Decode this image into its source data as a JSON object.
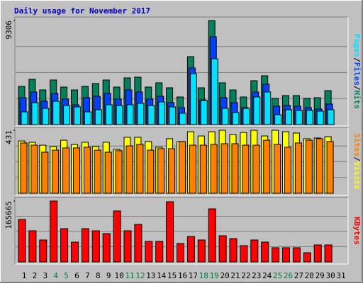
{
  "chart_data": [
    {
      "type": "bar",
      "title": "Daily usage for November 2017",
      "ylim": [
        0,
        9306
      ],
      "yticks": [
        9306
      ],
      "legend_separator": "/",
      "series": [
        {
          "name": "Hits",
          "color": "#00805c",
          "values": [
            3419,
            4052,
            3102,
            3988,
            3355,
            3102,
            3419,
            3672,
            3988,
            3355,
            4178,
            4242,
            3355,
            3735,
            3292,
            2469,
            6077,
            3292,
            9306,
            3735,
            3102,
            2469,
            3925,
            4368,
            2342,
            2596,
            2596,
            2342,
            2406,
            3039,
            null
          ]
        },
        {
          "name": "Files",
          "color": "#0040ff",
          "values": [
            2405,
            2912,
            2089,
            2785,
            2279,
            1772,
            2405,
            2532,
            2785,
            2279,
            3102,
            2912,
            2279,
            2532,
            1962,
            1519,
            5064,
            2216,
            7850,
            2405,
            1962,
            1519,
            2912,
            3608,
            1646,
            1709,
            1646,
            1519,
            1393,
            1836,
            null
          ]
        },
        {
          "name": "Pages",
          "color": "#00e0ff",
          "values": [
            1139,
            1962,
            1456,
            2089,
            1709,
            1583,
            1139,
            1329,
            1772,
            1709,
            1772,
            1899,
            1709,
            2026,
            1583,
            1013,
            4558,
            2152,
            5887,
            1456,
            1076,
            1456,
            2469,
            2912,
            886,
            1329,
            1266,
            1266,
            1203,
            1329,
            null
          ]
        }
      ]
    },
    {
      "type": "bar",
      "ylim": [
        0,
        431
      ],
      "yticks": [
        431
      ],
      "legend_separator": "/",
      "series": [
        {
          "name": "Visits",
          "color": "#ffff00",
          "values": [
            358,
            349,
            329,
            320,
            363,
            334,
            349,
            320,
            349,
            300,
            383,
            383,
            354,
            315,
            373,
            354,
            421,
            392,
            421,
            431,
            402,
            416,
            431,
            392,
            431,
            421,
            412,
            373,
            378,
            387,
            null
          ]
        },
        {
          "name": "Sites",
          "color": "#ff8000",
          "values": [
            344,
            329,
            281,
            295,
            310,
            310,
            315,
            295,
            281,
            291,
            324,
            334,
            295,
            305,
            305,
            354,
            329,
            329,
            334,
            339,
            339,
            329,
            329,
            363,
            334,
            315,
            344,
            363,
            373,
            354,
            null
          ]
        }
      ]
    },
    {
      "type": "bar",
      "ylim": [
        0,
        165665
      ],
      "yticks": [
        165665
      ],
      "categories": [
        "1",
        "2",
        "3",
        "4",
        "5",
        "6",
        "7",
        "8",
        "9",
        "10",
        "11",
        "12",
        "13",
        "14",
        "15",
        "16",
        "17",
        "18",
        "19",
        "20",
        "21",
        "22",
        "23",
        "24",
        "25",
        "26",
        "27",
        "28",
        "29",
        "30",
        "31"
      ],
      "category_colors": [
        "#000",
        "#000",
        "#000",
        "#008040",
        "#008040",
        "#000",
        "#000",
        "#000",
        "#000",
        "#000",
        "#008040",
        "#008040",
        "#000",
        "#000",
        "#000",
        "#000",
        "#000",
        "#008040",
        "#008040",
        "#000",
        "#000",
        "#000",
        "#000",
        "#000",
        "#008040",
        "#008040",
        "#000",
        "#000",
        "#000",
        "#000",
        "#000"
      ],
      "series": [
        {
          "name": "KBytes",
          "color": "#ff0000",
          "values": [
            115580,
            84758,
            59716,
            165665,
            90537,
            53937,
            90537,
            84758,
            77054,
            138696,
            84758,
            102096,
            55863,
            55863,
            163739,
            50085,
            69348,
            59716,
            144476,
            71274,
            63569,
            44306,
            59716,
            53937,
            38527,
            38527,
            38527,
            25042,
            46232,
            46232,
            null
          ]
        }
      ]
    }
  ]
}
